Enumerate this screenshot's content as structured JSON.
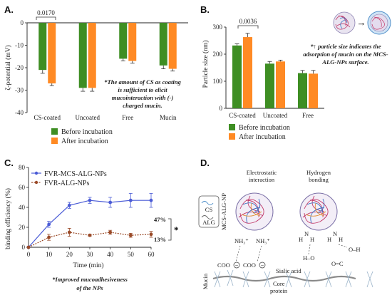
{
  "colors": {
    "before": "#3e8e23",
    "after": "#ff8a24",
    "fvr_mcs": "#4a5bd6",
    "fvr_alg": "#9a4a28"
  },
  "panelA": {
    "label": "A.",
    "note_lines": [
      "*The amount of CS as coating",
      "is sufficient to elicit",
      "mucointeraction with (-)",
      "charged mucin."
    ],
    "sig": "0.0170"
  },
  "panelB": {
    "label": "B.",
    "note_lines": [
      "*↑ particle size indicates the",
      "adsorption of mucin on the MCS-",
      "ALG-NPs surface."
    ],
    "sig": "0.0036",
    "arrow": "→"
  },
  "panelC": {
    "label": "C.",
    "note_lines": [
      "*Improved mucoadhesiveness",
      "of the NPs"
    ],
    "end_labels": [
      "47%",
      "13%"
    ],
    "star": "*"
  },
  "panelD": {
    "label": "D.",
    "title_left": [
      "Electrostatic",
      "interaction"
    ],
    "title_right": [
      "Hydrogen",
      "bonding"
    ],
    "legend_cs": "CS",
    "legend_alg": "ALG",
    "np_label": "MCS-ALG-NP",
    "nh3_a": "NH₃⁺",
    "nh3_b": "NH₃⁺",
    "coo_a": "COO",
    "coo_b": "COO",
    "minus": "−",
    "sialic": "Sialic acid",
    "core": [
      "Core",
      "protein"
    ],
    "mucin": "Mucin",
    "hb_atoms": [
      "H",
      "N",
      "H",
      "H–O",
      "H",
      "N",
      "H",
      "O–H",
      "O=C"
    ]
  },
  "chart_data": [
    {
      "type": "bar",
      "panel": "A",
      "title": "",
      "xlabel": "",
      "ylabel": "ζ-potential (mV)",
      "ylim": [
        -40,
        0
      ],
      "yticks": [
        0,
        -10,
        -20,
        -30,
        -40
      ],
      "categories": [
        "CS-coated",
        "Uncoated",
        "Free",
        "Mucin"
      ],
      "series": [
        {
          "name": "Before incubation",
          "values": [
            -21,
            -29,
            -16,
            -19
          ],
          "errors": [
            1.5,
            1.5,
            1.0,
            1.5
          ]
        },
        {
          "name": "After incubation",
          "values": [
            -27,
            -29,
            -17,
            -20.5
          ],
          "errors": [
            1.0,
            1.5,
            1.0,
            1.0
          ]
        }
      ],
      "legend": "bottom",
      "annotations": [
        "0.0170"
      ]
    },
    {
      "type": "bar",
      "panel": "B",
      "title": "",
      "xlabel": "",
      "ylabel": "Particle size (nm)",
      "ylim": [
        0,
        300
      ],
      "yticks": [
        0,
        100,
        200,
        300
      ],
      "categories": [
        "CS-coated",
        "Uncoated",
        "Free"
      ],
      "series": [
        {
          "name": "Before incubation",
          "values": [
            232,
            165,
            130
          ],
          "errors": [
            6,
            8,
            10
          ]
        },
        {
          "name": "After incubation",
          "values": [
            263,
            173,
            128
          ],
          "errors": [
            14,
            5,
            12
          ]
        }
      ],
      "legend": "bottom",
      "annotations": [
        "0.0036"
      ]
    },
    {
      "type": "line",
      "panel": "C",
      "title": "",
      "xlabel": "Time (min)",
      "ylabel": "binding efficiency (%)",
      "xlim": [
        0,
        60
      ],
      "ylim": [
        0,
        80
      ],
      "xticks": [
        0,
        10,
        20,
        30,
        40,
        50,
        60
      ],
      "yticks": [
        0,
        20,
        40,
        60,
        80
      ],
      "x": [
        0,
        10,
        20,
        30,
        40,
        50,
        60
      ],
      "series": [
        {
          "name": "FVR-MCS-ALG-NPs",
          "values": [
            0,
            23,
            42,
            47,
            45,
            47,
            47
          ],
          "errors": [
            0,
            3,
            3,
            3,
            5,
            7,
            7
          ]
        },
        {
          "name": "FVR-ALG-NPs",
          "values": [
            0,
            10,
            15,
            12,
            15,
            12,
            13
          ],
          "errors": [
            0,
            3,
            4,
            1,
            2,
            2,
            3
          ]
        }
      ],
      "legend": "top-left",
      "annotations": [
        "47%",
        "13%",
        "*"
      ]
    }
  ]
}
